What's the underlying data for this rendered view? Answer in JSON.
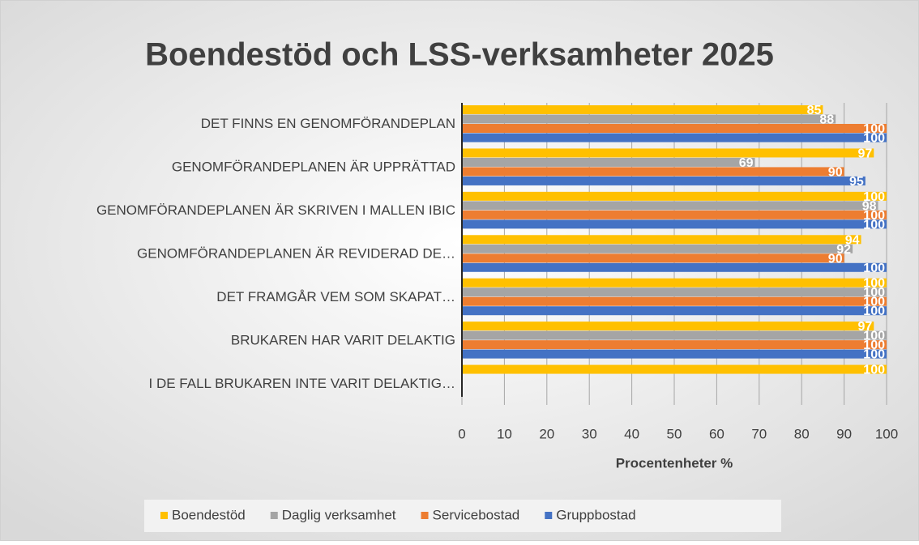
{
  "chart_data": {
    "type": "bar",
    "orientation": "horizontal",
    "title": "Boendestöd och LSS-verksamheter 2025",
    "x_label": "Procentenheter %",
    "categories": [
      "DET FINNS EN GENOMFÖRANDEPLAN",
      "GENOMFÖRANDEPLANEN ÄR UPPRÄTTAD",
      "GENOMFÖRANDEPLANEN ÄR SKRIVEN I MALLEN IBIC",
      "GENOMFÖRANDEPLANEN ÄR REVIDERAD DE…",
      "DET FRAMGÅR VEM SOM SKAPAT…",
      "BRUKAREN HAR VARIT DELAKTIG",
      "I DE FALL BRUKAREN INTE VARIT DELAKTIG…"
    ],
    "series": [
      {
        "name": "Boendestöd",
        "color": "#FFC000",
        "values": [
          85,
          97,
          100,
          94,
          100,
          97,
          100
        ]
      },
      {
        "name": "Daglig verksamhet",
        "color": "#A5A5A5",
        "values": [
          88,
          69,
          98,
          92,
          100,
          100,
          null
        ]
      },
      {
        "name": "Servicebostad",
        "color": "#ED7D31",
        "values": [
          100,
          90,
          100,
          90,
          100,
          100,
          null
        ]
      },
      {
        "name": "Gruppbostad",
        "color": "#4472C4",
        "values": [
          100,
          95,
          100,
          100,
          100,
          100,
          null
        ]
      }
    ],
    "xlim": [
      0,
      100
    ],
    "xticks": [
      0,
      10,
      20,
      30,
      40,
      50,
      60,
      70,
      80,
      90,
      100
    ],
    "grid": true,
    "legend": "bottom",
    "data_labels": true
  }
}
